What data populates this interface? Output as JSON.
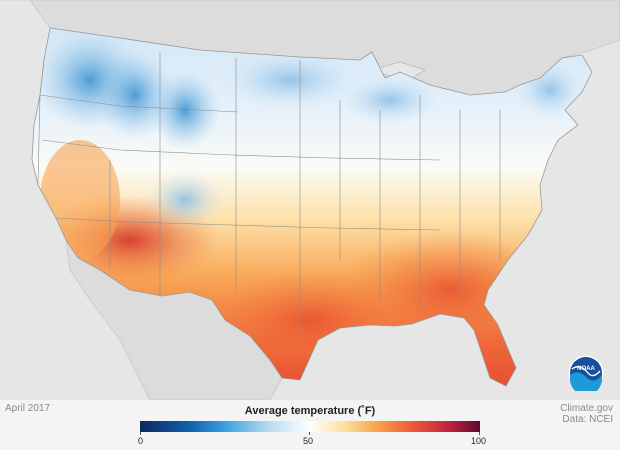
{
  "date_label": "April 2017",
  "legend": {
    "title": "Average temperature (˚F)",
    "tick_labels": [
      "0",
      "50",
      "100"
    ],
    "colors": [
      "#0c2a5c",
      "#1262b0",
      "#3aa0e0",
      "#ffffff",
      "#f8a24a",
      "#ee5a36",
      "#5c0a2e"
    ]
  },
  "credit": {
    "line1": "Climate.gov",
    "line2": "Data: NCEI"
  },
  "logo": {
    "text": "NOAA",
    "icon": "noaa-logo"
  },
  "map": {
    "background": "#e6e6e6",
    "land_other": "#dcdcdc",
    "borders": "#8c8c8c"
  }
}
